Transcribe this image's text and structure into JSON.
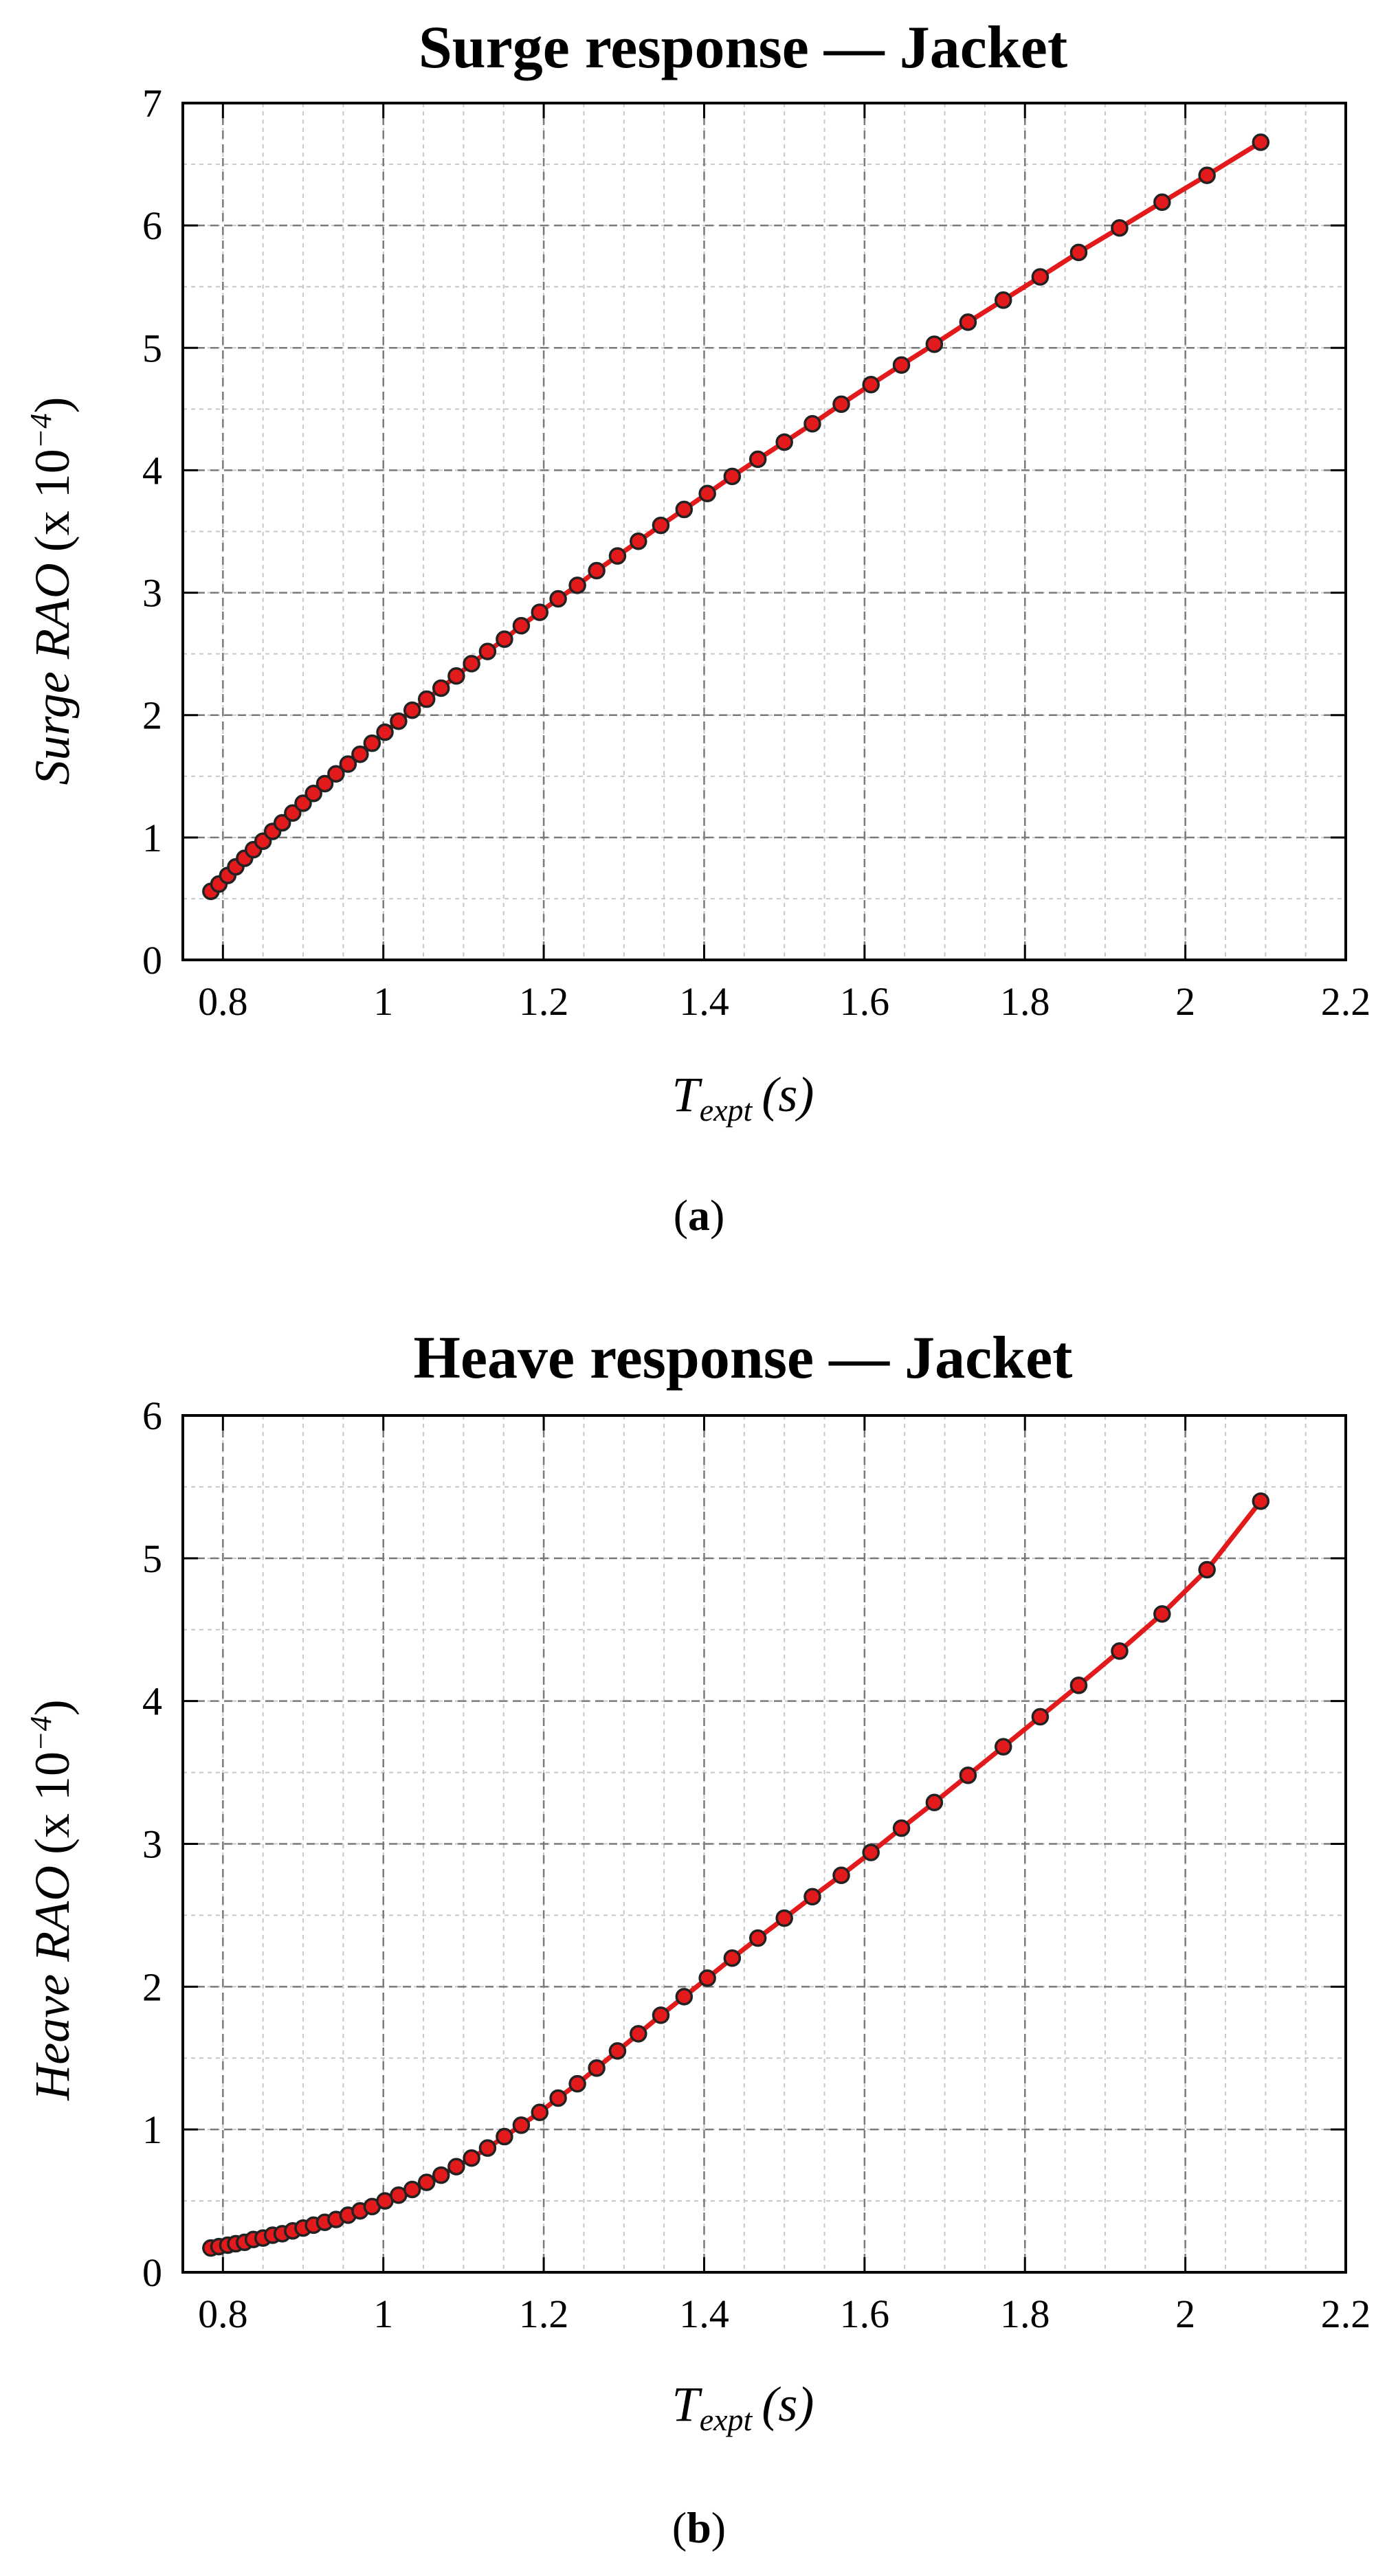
{
  "chart_data": [
    {
      "type": "line",
      "title": "Surge response — Jacket",
      "xlabel": {
        "var": "T",
        "sub": "expt",
        "unit": "(s)"
      },
      "ylabel": {
        "name": "Surge RAO",
        "unit_prefix": "(x 10",
        "exp": "−4",
        "unit_suffix": ")"
      },
      "xlim": [
        0.75,
        2.2
      ],
      "ylim": [
        0,
        7
      ],
      "xticks": [
        "0.8",
        "1",
        "1.2",
        "1.4",
        "1.6",
        "1.8",
        "2",
        "2.2"
      ],
      "yticks": [
        "0",
        "1",
        "2",
        "3",
        "4",
        "5",
        "6",
        "7"
      ],
      "grid": true,
      "panel_label": {
        "open": "(",
        "letter": "a",
        "close": ")"
      },
      "series": [
        {
          "color": "#e31a1c",
          "x": [
            0.785,
            0.795,
            0.806,
            0.816,
            0.827,
            0.838,
            0.85,
            0.862,
            0.874,
            0.887,
            0.9,
            0.913,
            0.927,
            0.941,
            0.956,
            0.971,
            0.986,
            1.002,
            1.019,
            1.036,
            1.054,
            1.072,
            1.091,
            1.11,
            1.13,
            1.151,
            1.172,
            1.195,
            1.218,
            1.242,
            1.266,
            1.292,
            1.318,
            1.346,
            1.375,
            1.404,
            1.435,
            1.467,
            1.5,
            1.535,
            1.571,
            1.608,
            1.646,
            1.687,
            1.729,
            1.773,
            1.819,
            1.867,
            1.918,
            1.971,
            2.027,
            2.094
          ],
          "y": [
            0.56,
            0.62,
            0.69,
            0.76,
            0.83,
            0.9,
            0.97,
            1.05,
            1.12,
            1.2,
            1.28,
            1.36,
            1.44,
            1.52,
            1.6,
            1.68,
            1.77,
            1.86,
            1.95,
            2.04,
            2.13,
            2.22,
            2.32,
            2.42,
            2.52,
            2.62,
            2.73,
            2.84,
            2.95,
            3.06,
            3.18,
            3.3,
            3.42,
            3.55,
            3.68,
            3.81,
            3.95,
            4.09,
            4.23,
            4.38,
            4.54,
            4.7,
            4.86,
            5.03,
            5.21,
            5.39,
            5.58,
            5.78,
            5.98,
            6.19,
            6.41,
            6.68
          ]
        }
      ]
    },
    {
      "type": "line",
      "title": "Heave response — Jacket",
      "xlabel": {
        "var": "T",
        "sub": "expt",
        "unit": "(s)"
      },
      "ylabel": {
        "name": "Heave RAO",
        "unit_prefix": "(x 10",
        "exp": "−4",
        "unit_suffix": ")"
      },
      "xlim": [
        0.75,
        2.2
      ],
      "ylim": [
        0,
        6
      ],
      "xticks": [
        "0.8",
        "1",
        "1.2",
        "1.4",
        "1.6",
        "1.8",
        "2",
        "2.2"
      ],
      "yticks": [
        "0",
        "1",
        "2",
        "3",
        "4",
        "5",
        "6"
      ],
      "grid": true,
      "panel_label": {
        "open": "(",
        "letter": "b",
        "close": ")"
      },
      "series": [
        {
          "color": "#e31a1c",
          "x": [
            0.785,
            0.795,
            0.806,
            0.816,
            0.827,
            0.838,
            0.85,
            0.862,
            0.874,
            0.887,
            0.9,
            0.913,
            0.927,
            0.941,
            0.956,
            0.971,
            0.986,
            1.002,
            1.019,
            1.036,
            1.054,
            1.072,
            1.091,
            1.11,
            1.13,
            1.151,
            1.172,
            1.195,
            1.218,
            1.242,
            1.266,
            1.292,
            1.318,
            1.346,
            1.375,
            1.404,
            1.435,
            1.467,
            1.5,
            1.535,
            1.571,
            1.608,
            1.646,
            1.687,
            1.729,
            1.773,
            1.819,
            1.867,
            1.918,
            1.971,
            2.027,
            2.094
          ],
          "y": [
            0.17,
            0.18,
            0.19,
            0.2,
            0.21,
            0.23,
            0.24,
            0.26,
            0.27,
            0.29,
            0.31,
            0.33,
            0.35,
            0.37,
            0.4,
            0.43,
            0.46,
            0.5,
            0.54,
            0.58,
            0.63,
            0.68,
            0.74,
            0.8,
            0.87,
            0.95,
            1.03,
            1.12,
            1.22,
            1.32,
            1.43,
            1.55,
            1.67,
            1.8,
            1.93,
            2.06,
            2.2,
            2.34,
            2.48,
            2.63,
            2.78,
            2.94,
            3.11,
            3.29,
            3.48,
            3.68,
            3.89,
            4.11,
            4.35,
            4.61,
            4.92,
            5.4
          ]
        }
      ]
    }
  ]
}
